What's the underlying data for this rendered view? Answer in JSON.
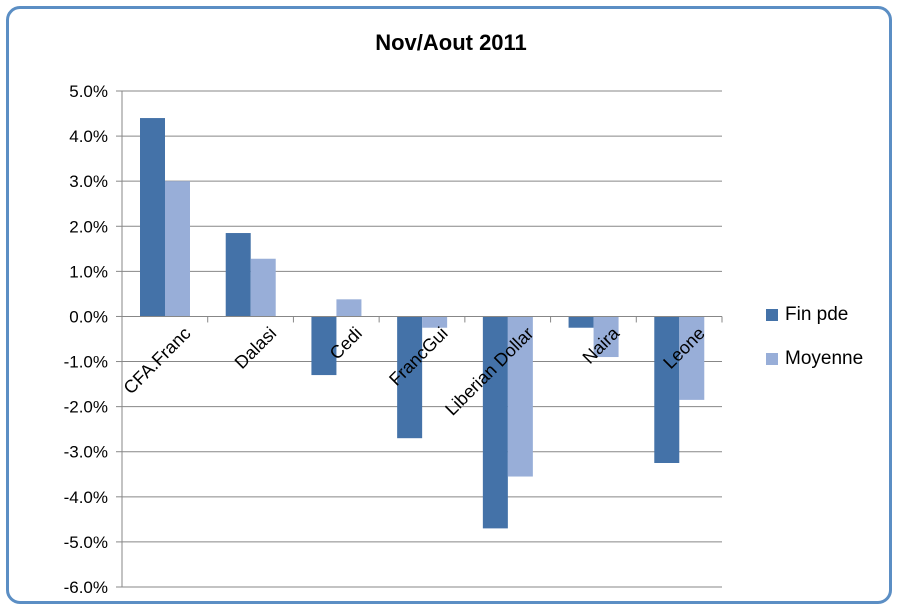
{
  "chart_data": {
    "type": "bar",
    "title": "Nov/Aout  2011",
    "xlabel": "",
    "ylabel": "",
    "categories": [
      "CFA.Franc",
      "Dalasi",
      "Cedi",
      "FrancGui",
      "Liberian Dollar",
      "Naira",
      "Leone"
    ],
    "series": [
      {
        "name": "Fin pde",
        "color": "#4472a8",
        "values": [
          4.4,
          1.85,
          -1.3,
          -2.7,
          -4.7,
          -0.25,
          -3.25
        ]
      },
      {
        "name": "Moyenne",
        "color": "#98aed8",
        "values": [
          3.0,
          1.28,
          0.38,
          -0.25,
          -3.55,
          -0.9,
          -1.85
        ]
      }
    ],
    "ylim": [
      -6.0,
      5.0
    ],
    "yticks": [
      "5.0%",
      "4.0%",
      "3.0%",
      "2.0%",
      "1.0%",
      "0.0%",
      "-1.0%",
      "-2.0%",
      "-3.0%",
      "-4.0%",
      "-5.0%",
      "-6.0%"
    ],
    "grid": true,
    "legend_position": "right"
  }
}
